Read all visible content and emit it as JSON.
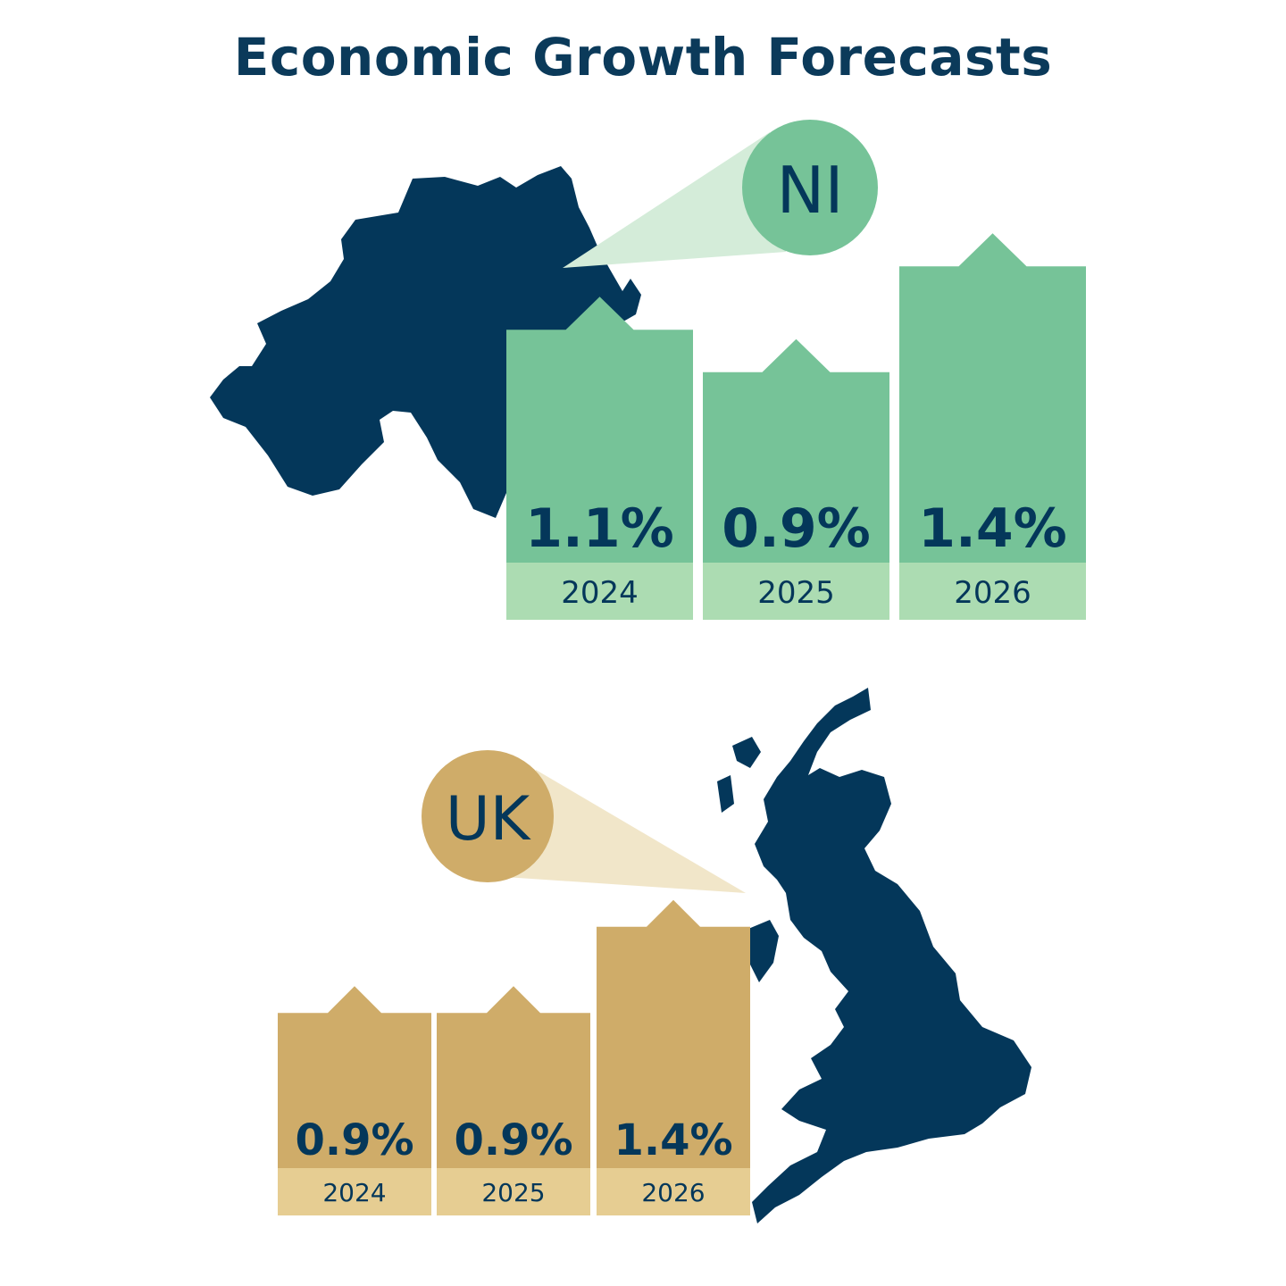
{
  "title": "Economic Growth Forecasts",
  "colors": {
    "navy": "#04375a",
    "ni_bar": "#76c398",
    "ni_label": "#acdcb2",
    "ni_cone": "#d4ecd9",
    "uk_bar": "#cfac69",
    "uk_label": "#e6cd92",
    "uk_cone": "#efe2c0"
  },
  "chart_data": [
    {
      "type": "bar",
      "region": "NI",
      "badge_label": "NI",
      "categories": [
        "2024",
        "2025",
        "2026"
      ],
      "values": [
        1.1,
        0.9,
        1.4
      ],
      "value_labels": [
        "1.1%",
        "0.9%",
        "1.4%"
      ],
      "unit": "%"
    },
    {
      "type": "bar",
      "region": "UK",
      "badge_label": "UK",
      "categories": [
        "2024",
        "2025",
        "2026"
      ],
      "values": [
        0.9,
        0.9,
        1.4
      ],
      "value_labels": [
        "0.9%",
        "0.9%",
        "1.4%"
      ],
      "unit": "%"
    }
  ]
}
